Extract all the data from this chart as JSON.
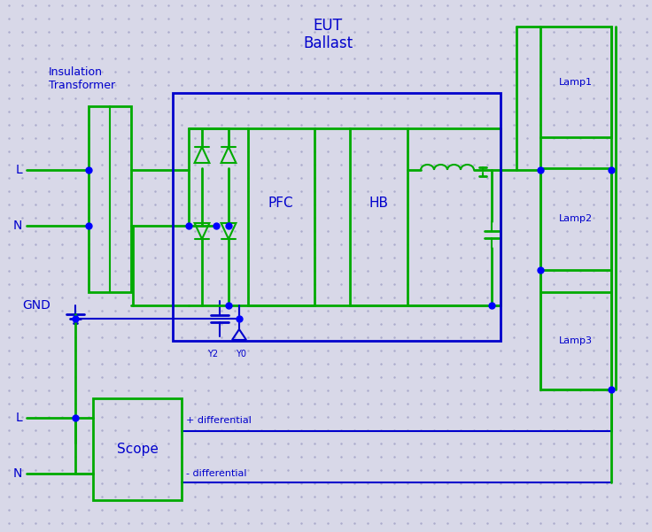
{
  "bg_color": "#d8d8e8",
  "green": "#00aa00",
  "blue": "#0000cc",
  "dot_color": "#aaaacc",
  "title_eut": "EUT",
  "title_ballast": "Ballast",
  "label_insulation": "Insulation\nTransformer",
  "label_scope": "Scope",
  "label_pfc": "PFC",
  "label_hb": "HB",
  "label_lamp1": "Lamp1",
  "label_lamp2": "Lamp2",
  "label_lamp3": "Lamp3",
  "label_L_top": "L",
  "label_N_top": "N",
  "label_GND": "GND",
  "label_L_bot": "L",
  "label_N_bot": "N",
  "label_Y2": "Y2",
  "label_Y0": "Y0",
  "label_pos_diff": "+ differential",
  "label_neg_diff": "- differential"
}
